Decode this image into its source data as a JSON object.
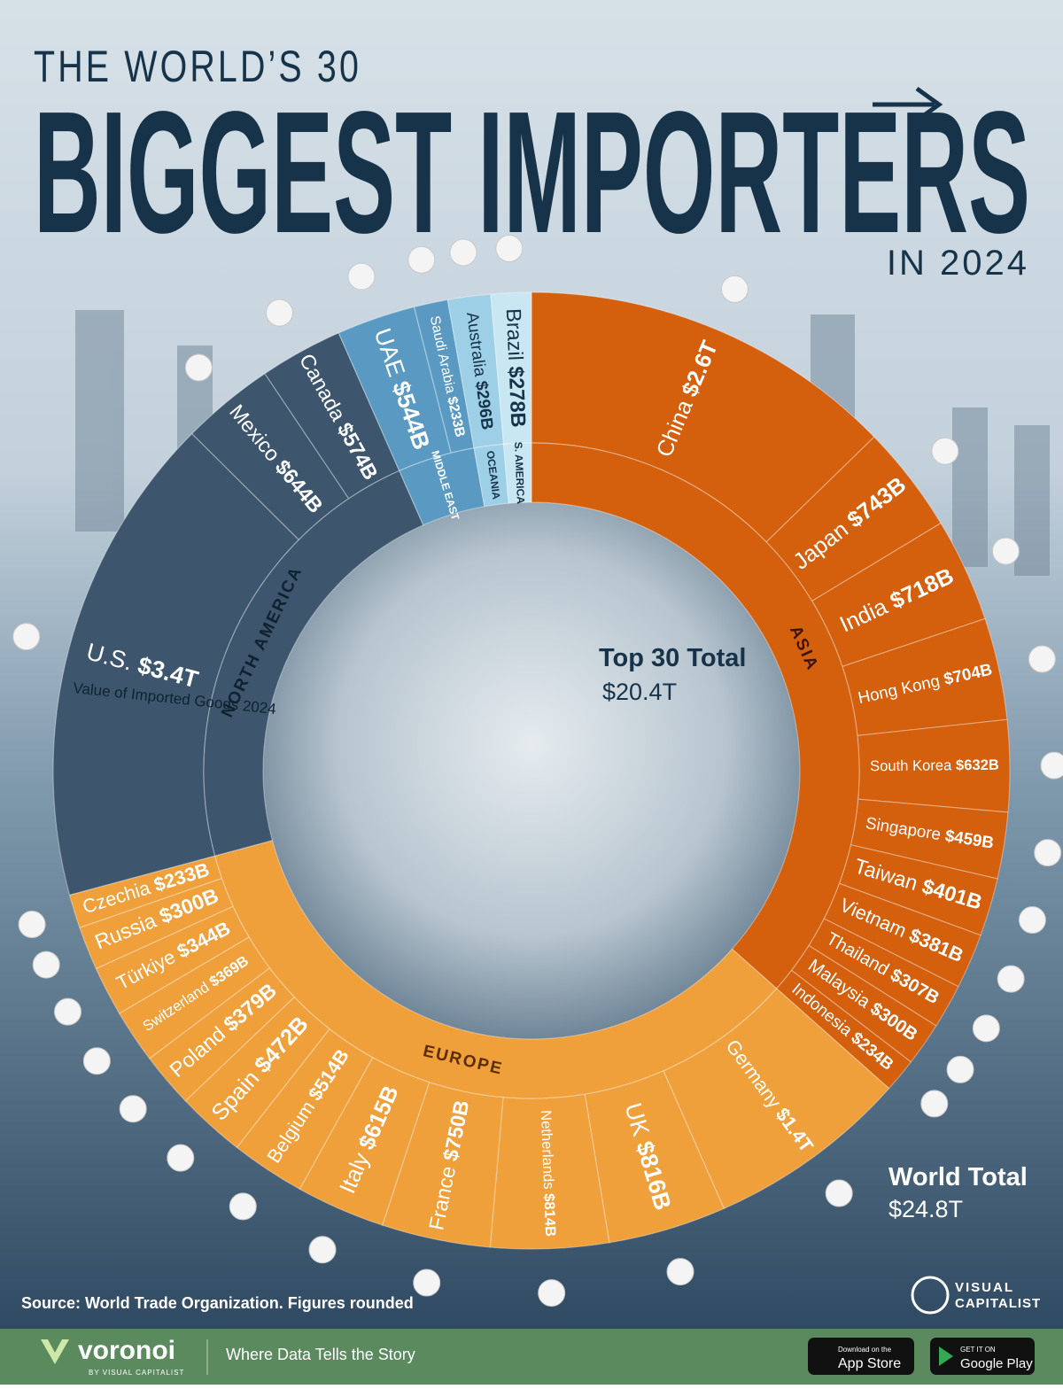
{
  "chart_data": {
    "type": "sunburst",
    "supertitle": "THE WORLD’S 30",
    "title": "BIGGEST IMPORTERS",
    "subtitle": "IN 2024",
    "series": [
      {
        "name": "ASIA",
        "color": "#d45f0c",
        "categories": [
          "China",
          "Japan",
          "India",
          "Hong Kong",
          "South Korea",
          "Singapore",
          "Taiwan",
          "Vietnam",
          "Thailand",
          "Malaysia",
          "Indonesia"
        ],
        "values": [
          2600,
          743,
          718,
          704,
          632,
          459,
          401,
          381,
          307,
          300,
          234
        ],
        "value_labels": [
          "$2.6T",
          "$743B",
          "$718B",
          "$704B",
          "$632B",
          "$459B",
          "$401B",
          "$381B",
          "$307B",
          "$300B",
          "$234B"
        ]
      },
      {
        "name": "EUROPE",
        "color": "#f0a03a",
        "categories": [
          "Germany",
          "UK",
          "Netherlands",
          "France",
          "Italy",
          "Belgium",
          "Spain",
          "Poland",
          "Switzerland",
          "Türkiye",
          "Russia",
          "Czechia"
        ],
        "values": [
          1400,
          816,
          814,
          750,
          615,
          514,
          472,
          379,
          369,
          344,
          300,
          233
        ],
        "value_labels": [
          "$1.4T",
          "$816B",
          "$814B",
          "$750B",
          "$615B",
          "$514B",
          "$472B",
          "$379B",
          "$369B",
          "$344B",
          "$300B",
          "$233B"
        ]
      },
      {
        "name": "NORTH AMERICA",
        "color": "#3d566d",
        "categories": [
          "U.S.",
          "Mexico",
          "Canada"
        ],
        "values": [
          3400,
          644,
          574
        ],
        "value_labels": [
          "$3.4T",
          "$644B",
          "$574B"
        ]
      },
      {
        "name": "MIDDLE EAST",
        "color": "#5a9ac2",
        "categories": [
          "UAE",
          "Saudi Arabia"
        ],
        "values": [
          544,
          233
        ],
        "value_labels": [
          "$544B",
          "$233B"
        ]
      },
      {
        "name": "OCEANIA",
        "color": "#9dcfe6",
        "categories": [
          "Australia"
        ],
        "values": [
          296
        ],
        "value_labels": [
          "$296B"
        ]
      },
      {
        "name": "S. AMERICA",
        "color": "#c8e7f3",
        "categories": [
          "Brazil"
        ],
        "values": [
          278
        ],
        "value_labels": [
          "$278B"
        ]
      }
    ],
    "note": "Value of Imported Goods 2024",
    "totals": [
      {
        "label": "Top 30 Total",
        "value": 20400,
        "value_label": "$20.4T"
      },
      {
        "label": "World Total",
        "value": 24800,
        "value_label": "$24.8T"
      }
    ],
    "source": "Source: World Trade Organization. Figures rounded"
  },
  "logo": [
    "VISUAL",
    "CAPITALIST"
  ],
  "footer": {
    "brand": "voronoi",
    "byline": "BY VISUAL CAPITALIST",
    "tagline": "Where Data Tells the Story",
    "apple_small": "Download on the",
    "apple": "App Store",
    "google_small": "GET IT ON",
    "google": "Google Play"
  }
}
